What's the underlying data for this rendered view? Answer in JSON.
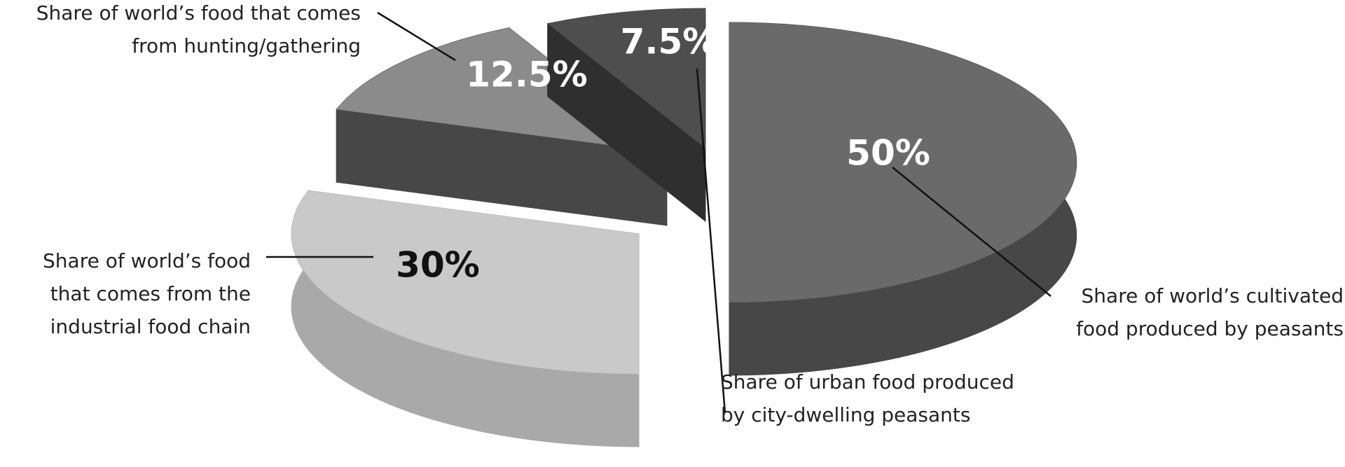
{
  "chart_data": {
    "type": "pie",
    "categories": [
      [
        "Share of world’s cultivated",
        "food produced by peasants"
      ],
      [
        "Share of world’s food",
        "that comes from the",
        "industrial food chain"
      ],
      [
        "Share of world’s food that comes",
        "from hunting/gathering"
      ],
      [
        "Share of urban food produced",
        "by city-dwelling peasants"
      ]
    ],
    "values": [
      50,
      30,
      12.5,
      7.5
    ],
    "value_labels": [
      "50%",
      "30%",
      "12.5%",
      "7.5%"
    ],
    "colors": [
      "#6a6a6a",
      "#c9c9c9",
      "#8b8b8b",
      "#4e4e4e"
    ],
    "side_colors": [
      "#474747",
      "#a9a9a9",
      "#474747",
      "#2f2f2f"
    ]
  }
}
